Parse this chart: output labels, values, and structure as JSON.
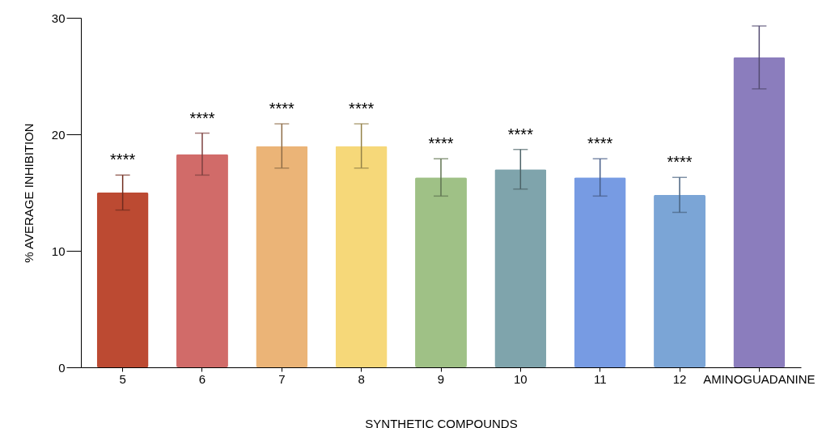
{
  "chart_data": {
    "type": "bar",
    "xlabel": "SYNTHETIC COMPOUNDS",
    "ylabel": "% AVERAGE INHIBITION",
    "categories": [
      "5",
      "6",
      "7",
      "8",
      "9",
      "10",
      "11",
      "12",
      "AMINOGUADANINE"
    ],
    "values": [
      15.0,
      18.3,
      19.0,
      19.0,
      16.3,
      17.0,
      16.3,
      14.8,
      26.6
    ],
    "errors": [
      1.5,
      1.8,
      1.9,
      1.9,
      1.6,
      1.7,
      1.6,
      1.5,
      2.7
    ],
    "colors": [
      "#bc4a32",
      "#d16b69",
      "#ebb477",
      "#f6d879",
      "#9fc186",
      "#7fa4ac",
      "#779be3",
      "#7ba5d6",
      "#8b7dbd"
    ],
    "ylim": [
      0,
      30
    ],
    "yticks": [
      0,
      10,
      20,
      30
    ],
    "grid": false,
    "annotations": [
      "****",
      "****",
      "****",
      "****",
      "****",
      "****",
      "****",
      "****"
    ]
  }
}
